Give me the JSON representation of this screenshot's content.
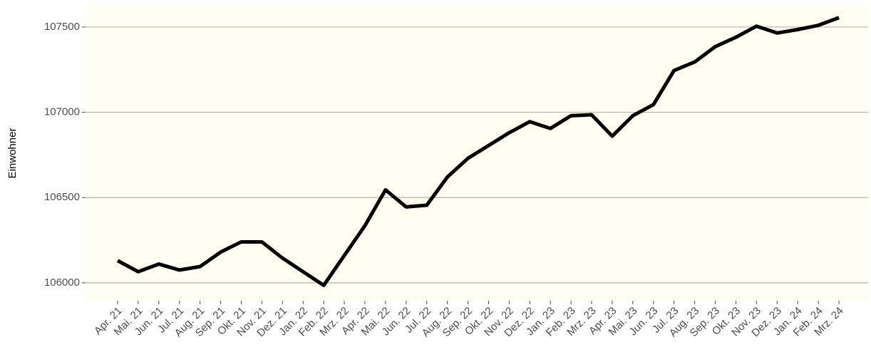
{
  "chart_data": {
    "type": "line",
    "y_label": "Einwohner",
    "categories": [
      "Apr. 21",
      "Mai. 21",
      "Jun. 21",
      "Jul. 21",
      "Aug. 21",
      "Sep. 21",
      "Okt. 21",
      "Nov. 21",
      "Dez. 21",
      "Jan. 22",
      "Feb. 22",
      "Mrz. 22",
      "Apr. 22",
      "Mai. 22",
      "Jun. 22",
      "Jul. 22",
      "Aug. 22",
      "Sep. 22",
      "Okt. 22",
      "Nov. 22",
      "Dez. 22",
      "Jan. 23",
      "Feb. 23",
      "Mrz. 23",
      "Apr. 23",
      "Mai. 23",
      "Jun. 23",
      "Jul. 23",
      "Aug. 23",
      "Sep. 23",
      "Okt. 23",
      "Nov. 23",
      "Dez. 23",
      "Jan. 24",
      "Feb. 24",
      "Mrz. 24"
    ],
    "values": [
      106130,
      106065,
      106110,
      106075,
      106095,
      106180,
      106240,
      106240,
      106145,
      106065,
      105985,
      106160,
      106335,
      106545,
      106445,
      106455,
      106620,
      106730,
      106805,
      106880,
      106945,
      106905,
      106980,
      106985,
      106860,
      106980,
      107045,
      107245,
      107295,
      107385,
      107440,
      107505,
      107465,
      107485,
      107510,
      107555
    ],
    "color": "#000000",
    "ylim": [
      105895,
      107625
    ],
    "yticks": [
      106000,
      106500,
      107000,
      107500
    ],
    "grid": true
  }
}
